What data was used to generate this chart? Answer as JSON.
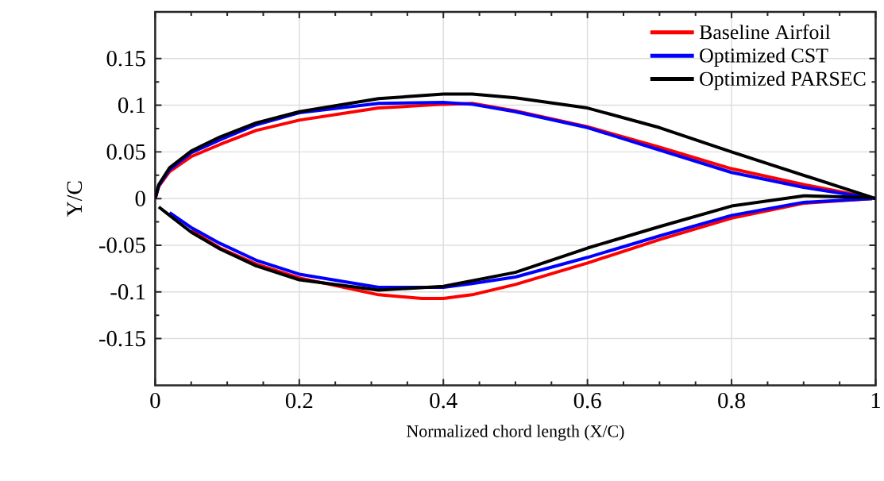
{
  "chart_data": {
    "type": "line",
    "xlabel": "Normalized chord length (X/C)",
    "ylabel": "Y/C",
    "xlim": [
      0,
      1
    ],
    "ylim": [
      -0.2,
      0.2
    ],
    "xticks": [
      0,
      0.2,
      0.4,
      0.6,
      0.8,
      1
    ],
    "yticks": [
      -0.15,
      -0.1,
      -0.05,
      0,
      0.05,
      0.1,
      0.15
    ],
    "grid": true,
    "legend": "top right",
    "line_style": "solid",
    "series": [
      {
        "name": "Baseline Airfoil",
        "color": "#ff0000",
        "x": [
          0,
          0.005,
          0.02,
          0.05,
          0.09,
          0.14,
          0.2,
          0.31,
          0.4,
          0.44,
          0.5,
          0.6,
          0.7,
          0.8,
          0.9,
          1
        ],
        "values": [
          0,
          0.013,
          0.029,
          0.045,
          0.058,
          0.073,
          0.084,
          0.097,
          0.101,
          0.102,
          0.094,
          0.077,
          0.055,
          0.032,
          0.015,
          0
        ]
      },
      {
        "color": "#ff0000",
        "x": [
          0.05,
          0.09,
          0.14,
          0.2,
          0.31,
          0.37,
          0.4,
          0.44,
          0.5,
          0.6,
          0.7,
          0.8,
          0.9,
          0.995
        ],
        "values": [
          -0.034,
          -0.053,
          -0.07,
          -0.085,
          -0.103,
          -0.107,
          -0.107,
          -0.103,
          -0.092,
          -0.069,
          -0.044,
          -0.021,
          -0.005,
          0
        ]
      },
      {
        "name": "Optimized CST",
        "color": "#0000ff",
        "x": [
          0,
          0.005,
          0.02,
          0.05,
          0.09,
          0.14,
          0.2,
          0.31,
          0.4,
          0.44,
          0.5,
          0.6,
          0.7,
          0.8,
          0.9,
          1
        ],
        "values": [
          0,
          0.014,
          0.031,
          0.049,
          0.063,
          0.079,
          0.092,
          0.102,
          0.103,
          0.101,
          0.093,
          0.076,
          0.052,
          0.028,
          0.012,
          0
        ]
      },
      {
        "color": "#0000ff",
        "x": [
          0.02,
          0.05,
          0.09,
          0.14,
          0.2,
          0.31,
          0.4,
          0.44,
          0.5,
          0.6,
          0.7,
          0.8,
          0.9,
          0.995
        ],
        "values": [
          -0.015,
          -0.031,
          -0.048,
          -0.066,
          -0.081,
          -0.095,
          -0.095,
          -0.091,
          -0.084,
          -0.063,
          -0.04,
          -0.018,
          -0.004,
          0
        ]
      },
      {
        "name": "Optimized PARSEC",
        "color": "#000000",
        "x": [
          0,
          0.005,
          0.02,
          0.05,
          0.09,
          0.14,
          0.2,
          0.31,
          0.4,
          0.44,
          0.5,
          0.6,
          0.7,
          0.8,
          0.9,
          1
        ],
        "values": [
          0,
          0.015,
          0.033,
          0.051,
          0.066,
          0.081,
          0.093,
          0.107,
          0.112,
          0.112,
          0.108,
          0.097,
          0.076,
          0.05,
          0.025,
          0
        ]
      },
      {
        "color": "#000000",
        "x": [
          0.005,
          0.02,
          0.05,
          0.09,
          0.14,
          0.2,
          0.31,
          0.4,
          0.44,
          0.5,
          0.6,
          0.7,
          0.8,
          0.9,
          0.995
        ],
        "values": [
          -0.009,
          -0.018,
          -0.036,
          -0.054,
          -0.072,
          -0.087,
          -0.098,
          -0.094,
          -0.088,
          -0.079,
          -0.053,
          -0.03,
          -0.008,
          0.003,
          0.001
        ]
      }
    ]
  }
}
